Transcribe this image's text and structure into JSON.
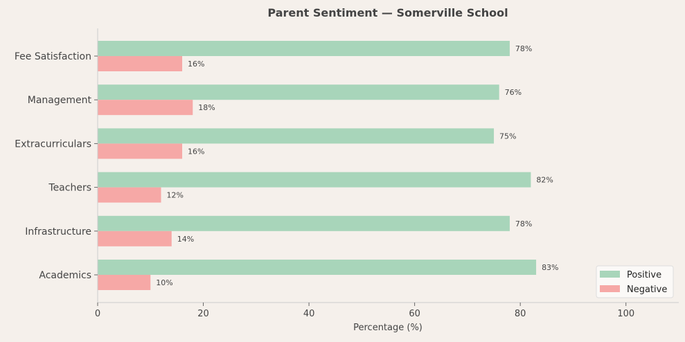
{
  "chart_data": {
    "type": "bar",
    "orientation": "horizontal",
    "title": "Parent Sentiment — Somerville School",
    "xlabel": "Percentage (%)",
    "ylabel": "",
    "xlim": [
      0,
      110
    ],
    "xticks": [
      0,
      20,
      40,
      60,
      80,
      100
    ],
    "categories": [
      "Fee Satisfaction",
      "Management",
      "Extracurriculars",
      "Teachers",
      "Infrastructure",
      "Academics"
    ],
    "series": [
      {
        "name": "Positive",
        "color": "#a8d5ba",
        "values": [
          78,
          76,
          75,
          82,
          78,
          83
        ]
      },
      {
        "name": "Negative",
        "color": "#f6a8a6",
        "values": [
          16,
          18,
          16,
          12,
          14,
          10
        ]
      }
    ],
    "value_label_suffix": "%",
    "grid": false,
    "legend_position": "bottom-right"
  }
}
